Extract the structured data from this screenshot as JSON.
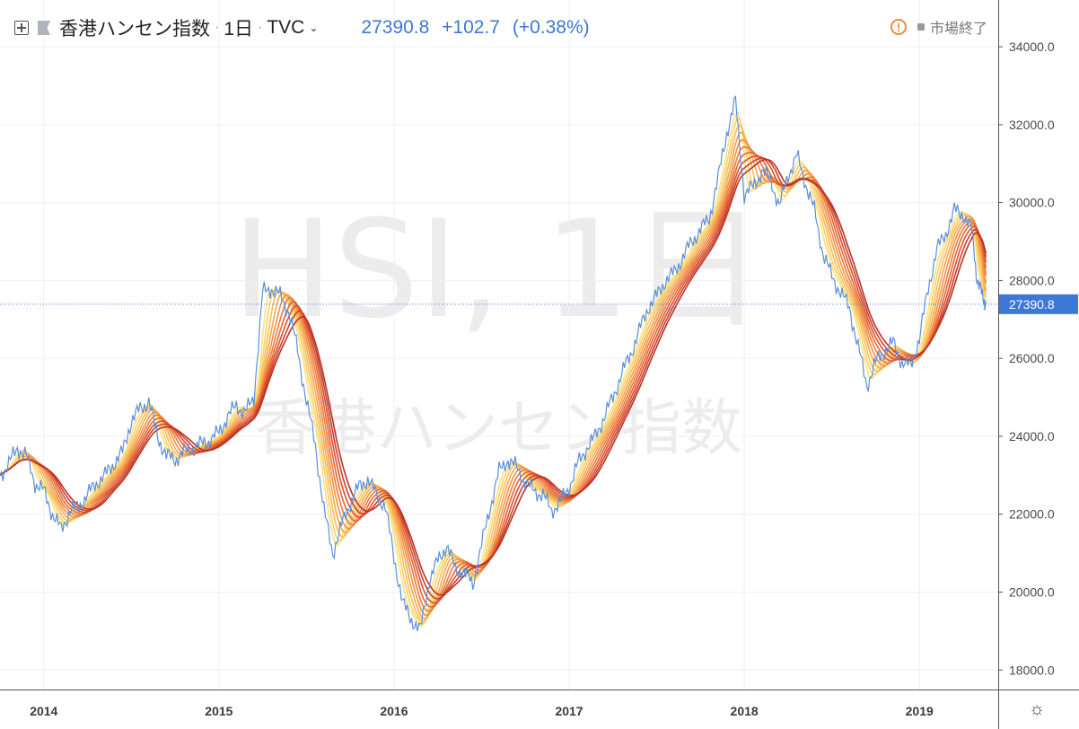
{
  "header": {
    "symbol_name": "香港ハンセン指数",
    "interval": "1日",
    "exchange": "TVC",
    "last_price": "27390.8",
    "change": "+102.7",
    "change_pct": "(+0.38%)",
    "market_status": "市場終了",
    "separator": "·",
    "dropdown_glyph": "⌄",
    "warning_glyph": "!",
    "settings_glyph": "☼"
  },
  "watermark": {
    "symbol": "HSI, 1日",
    "name": "香港ハンセン指数"
  },
  "colors": {
    "price_line": "#5b8fd9",
    "ribbon": [
      "#fde37a",
      "#fbd066",
      "#f9bc56",
      "#f6a64a",
      "#f29041",
      "#ec7a3a",
      "#e46434",
      "#d9502e",
      "#cb3f2a",
      "#b83226"
    ],
    "price_tag": "#3d78d8",
    "grid": "#eef0f3",
    "axis": "#555555"
  },
  "chart_data": {
    "type": "line",
    "x_axis": {
      "ticks": [
        "2014",
        "2015",
        "2016",
        "2017",
        "2018",
        "2019"
      ],
      "range": [
        2013.75,
        2019.45
      ]
    },
    "y_axis": {
      "ticks": [
        "18000.0",
        "20000.0",
        "22000.0",
        "24000.0",
        "26000.0",
        "28000.0",
        "30000.0",
        "32000.0",
        "34000.0"
      ],
      "range": [
        17500,
        35200
      ]
    },
    "last_value": 27390.8,
    "last_value_label": "27390.8",
    "series": [
      {
        "x": [
          2013.75,
          2013.8,
          2013.85,
          2013.9,
          2013.95,
          2014.0,
          2014.05,
          2014.1,
          2014.15,
          2014.2,
          2014.25,
          2014.3,
          2014.35,
          2014.4,
          2014.45,
          2014.5,
          2014.55,
          2014.6,
          2014.65,
          2014.7,
          2014.75,
          2014.8,
          2014.85,
          2014.9,
          2014.95,
          2015.0,
          2015.05,
          2015.1,
          2015.15,
          2015.2,
          2015.25,
          2015.3,
          2015.35,
          2015.4,
          2015.45,
          2015.5,
          2015.55,
          2015.6,
          2015.65,
          2015.7,
          2015.75,
          2015.8,
          2015.85,
          2015.9,
          2015.95,
          2016.0,
          2016.05,
          2016.1,
          2016.15,
          2016.2,
          2016.25,
          2016.3,
          2016.35,
          2016.4,
          2016.45,
          2016.5,
          2016.55,
          2016.6,
          2016.65,
          2016.7,
          2016.75,
          2016.8,
          2016.85,
          2016.9,
          2016.95,
          2017.0,
          2017.05,
          2017.1,
          2017.15,
          2017.2,
          2017.25,
          2017.3,
          2017.35,
          2017.4,
          2017.45,
          2017.5,
          2017.55,
          2017.6,
          2017.65,
          2017.7,
          2017.75,
          2017.8,
          2017.85,
          2017.9,
          2017.95,
          2018.0,
          2018.05,
          2018.1,
          2018.15,
          2018.2,
          2018.25,
          2018.3,
          2018.35,
          2018.4,
          2018.45,
          2018.5,
          2018.55,
          2018.6,
          2018.65,
          2018.7,
          2018.75,
          2018.8,
          2018.85,
          2018.9,
          2018.95,
          2019.0,
          2019.05,
          2019.1,
          2019.15,
          2019.2,
          2019.25,
          2019.3,
          2019.33,
          2019.36,
          2019.38
        ],
        "values": [
          23000,
          23300,
          23700,
          23500,
          22800,
          22600,
          22000,
          21600,
          22100,
          22200,
          22500,
          22800,
          23000,
          23300,
          23600,
          24400,
          24700,
          24900,
          24000,
          23500,
          23400,
          23600,
          23700,
          23800,
          23900,
          24100,
          24500,
          24800,
          24600,
          25000,
          27700,
          27800,
          27600,
          27200,
          26200,
          24900,
          23800,
          22100,
          21000,
          21700,
          22300,
          22700,
          22900,
          22500,
          22200,
          20900,
          19700,
          19300,
          19000,
          20300,
          20800,
          21200,
          20600,
          20500,
          20200,
          21200,
          22200,
          23100,
          23400,
          23200,
          22800,
          22600,
          22500,
          22100,
          22300,
          22700,
          23300,
          23700,
          24000,
          24500,
          25000,
          25600,
          26100,
          26700,
          27300,
          27600,
          28000,
          28200,
          28600,
          29000,
          29300,
          29600,
          30600,
          31800,
          32600,
          30200,
          30400,
          30800,
          30600,
          29900,
          30700,
          31200,
          30500,
          29800,
          28700,
          28100,
          27700,
          27300,
          26300,
          25300,
          25900,
          26200,
          26400,
          25900,
          25800,
          26500,
          27800,
          28800,
          29200,
          29800,
          29700,
          29300,
          28000,
          27600,
          27391
        ]
      }
    ]
  }
}
